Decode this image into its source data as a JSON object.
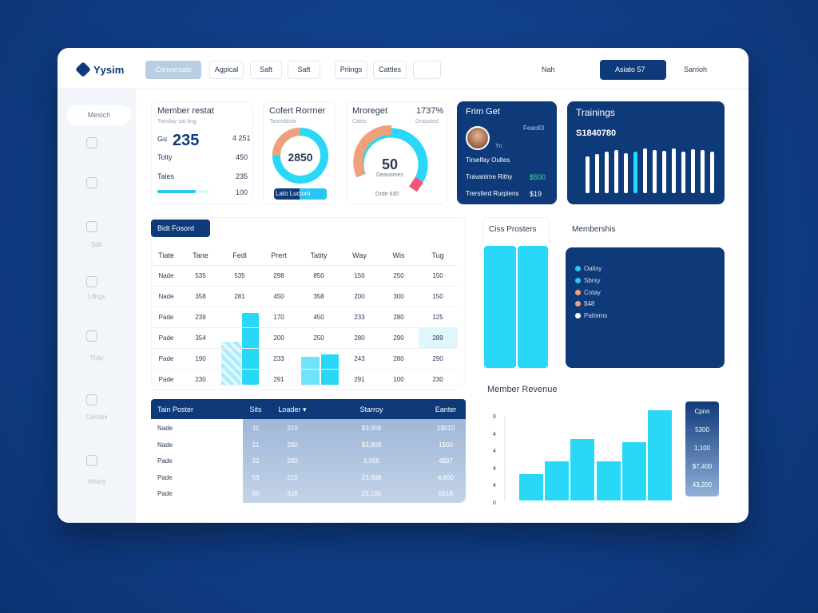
{
  "header": {
    "logo": "Yysim",
    "nav": [
      "Conversats",
      "Agpical",
      "Saft",
      "Saft",
      "Priings",
      "Cattles"
    ],
    "filter": "Nah",
    "account": "Asiato 57",
    "search": "Sarrioh"
  },
  "sidebar": {
    "active": "Mesich",
    "items": [
      "Sdit",
      "Lilngs",
      "Thity",
      "Contiss",
      "Weirry"
    ]
  },
  "cards": {
    "member": {
      "title": "Member restat",
      "subtitle": "Twnday sat ting",
      "label": "Gu",
      "value": "235",
      "aside": "4 251",
      "rows": [
        [
          "Tolty",
          "450"
        ],
        [
          "Tales",
          "235"
        ]
      ],
      "footer": "100"
    },
    "content": {
      "title": "Cofert Rorrner",
      "subtitle": "Tasmddule",
      "value": "2850",
      "button": "Lato Lucioni"
    },
    "margin": {
      "title": "Mroreget",
      "percent": "1737%",
      "subtitle": "Catits",
      "aside": "Dropated",
      "value": "50",
      "caption": "Deaoomes",
      "footer": "Orde 630"
    },
    "profile": {
      "title": "Frim Get",
      "meta": "Feaoll3",
      "tag": "Tn",
      "rows": [
        {
          "label": "Tirselfay Oultes"
        },
        {
          "label": "Travanirne Rithy",
          "value": "$500"
        },
        {
          "label": "Trersferd Rurplens",
          "value": "$19"
        }
      ]
    },
    "trainings": {
      "title": "Trainings",
      "value": "S1840780"
    }
  },
  "table": {
    "tab": "Bidt Fosord",
    "headers": [
      "Tiate",
      "Tane",
      "Fedl",
      "Prert",
      "Tatity",
      "Way",
      "Wis",
      "Tug"
    ],
    "rows": [
      [
        "Nade",
        "535",
        "535",
        "298",
        "850",
        "150",
        "250",
        "150"
      ],
      [
        "Nade",
        "358",
        "281",
        "450",
        "358",
        "200",
        "300",
        "150"
      ],
      [
        "Pade",
        "239",
        null,
        "170",
        "450",
        "233",
        "280",
        "125"
      ],
      [
        "Pade",
        "354",
        null,
        "200",
        "250",
        "280",
        "290",
        "289"
      ],
      [
        "Pade",
        "190",
        null,
        "233",
        null,
        "243",
        "280",
        "290"
      ],
      [
        "Pade",
        "230",
        null,
        "291",
        null,
        "291",
        "100",
        "230"
      ]
    ]
  },
  "team": {
    "headers": [
      "Tain Poster",
      "Sits",
      "Loader ▾",
      "Starroy",
      "Eanter"
    ],
    "rows": [
      [
        "Nade",
        "11",
        "210",
        "$3,008",
        "1$010"
      ],
      [
        "Nade",
        "21",
        "280",
        "$3,808",
        "1$60"
      ],
      [
        "Pade",
        "32",
        "280",
        "2,008",
        "4$97"
      ],
      [
        "Pade",
        "53",
        "210",
        "23,808",
        "4,800"
      ],
      [
        "Pade",
        "85",
        "318",
        "23,100",
        "5$18"
      ]
    ]
  },
  "class": {
    "title": "Ciss Prosters"
  },
  "membership": {
    "title": "Membershis",
    "legend": [
      {
        "label": "Oalisy",
        "color": "#29c5f6"
      },
      {
        "label": "Sbrsy",
        "color": "#29c5f6"
      },
      {
        "label": "Cotay",
        "color": "#f0a07a"
      },
      {
        "label": "$48",
        "color": "#f0a07a"
      },
      {
        "label": "Pattems",
        "color": "#ffffff"
      }
    ]
  },
  "revenue": {
    "title": "Member Revenue",
    "yticks": [
      "0",
      "4",
      "4",
      "4",
      "4",
      "0"
    ],
    "legend": [
      "Cpnn",
      "5300",
      "1,100",
      "$7,400",
      "43,200"
    ]
  }
}
